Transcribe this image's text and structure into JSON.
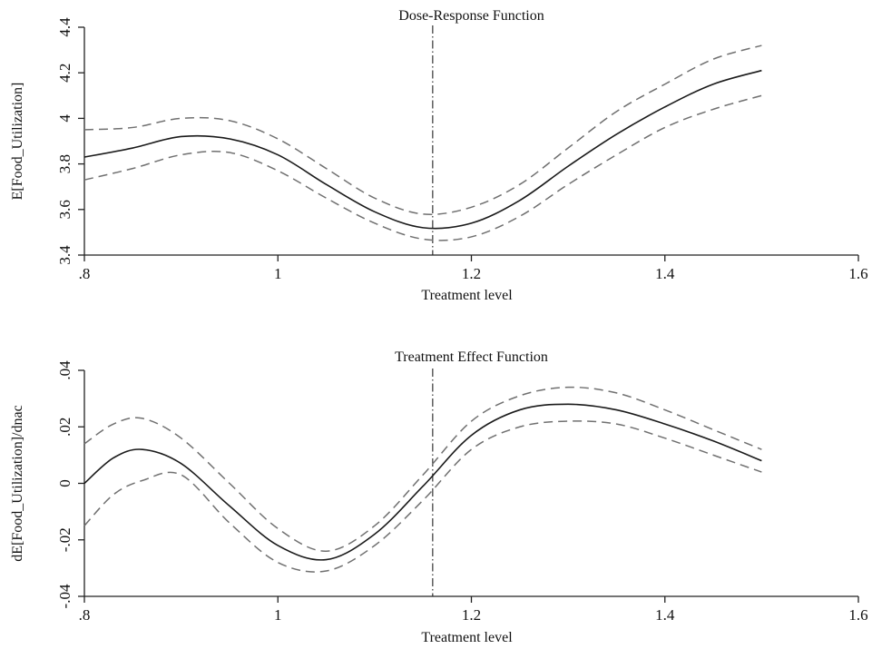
{
  "chart_data": [
    {
      "type": "line",
      "title": "Dose-Response Function",
      "xlabel": "Treatment level",
      "ylabel": "E[Food_Utilization]",
      "xlim": [
        0.8,
        1.6
      ],
      "ylim": [
        3.4,
        4.4
      ],
      "x_ticks": [
        0.8,
        1.0,
        1.2,
        1.4,
        1.6
      ],
      "x_tick_labels": [
        ".8",
        "1",
        "1.2",
        "1.4",
        "1.6"
      ],
      "y_ticks": [
        3.4,
        3.6,
        3.8,
        4.0,
        4.2,
        4.4
      ],
      "y_tick_labels": [
        "3.4",
        "3.6",
        "3.8",
        "4",
        "4.2",
        "4.4"
      ],
      "reference_line_x": 1.16,
      "grid": false,
      "x": [
        0.8,
        0.85,
        0.9,
        0.95,
        1.0,
        1.05,
        1.1,
        1.15,
        1.2,
        1.25,
        1.3,
        1.35,
        1.4,
        1.45,
        1.5
      ],
      "series": [
        {
          "style": "solid",
          "values": [
            3.83,
            3.87,
            3.92,
            3.91,
            3.84,
            3.71,
            3.59,
            3.52,
            3.54,
            3.64,
            3.79,
            3.93,
            4.05,
            4.15,
            4.21
          ]
        },
        {
          "style": "dashed",
          "values": [
            3.95,
            3.96,
            4.0,
            3.99,
            3.91,
            3.78,
            3.65,
            3.58,
            3.61,
            3.71,
            3.87,
            4.03,
            4.15,
            4.26,
            4.32
          ]
        },
        {
          "style": "dashed",
          "values": [
            3.73,
            3.78,
            3.84,
            3.85,
            3.77,
            3.65,
            3.54,
            3.47,
            3.48,
            3.57,
            3.71,
            3.84,
            3.96,
            4.04,
            4.1
          ]
        }
      ]
    },
    {
      "type": "line",
      "title": "Treatment Effect Function",
      "xlabel": "Treatment level",
      "ylabel": "dE[Food_Utilization]/dnac",
      "xlim": [
        0.8,
        1.6
      ],
      "ylim": [
        -0.04,
        0.04
      ],
      "x_ticks": [
        0.8,
        1.0,
        1.2,
        1.4,
        1.6
      ],
      "x_tick_labels": [
        ".8",
        "1",
        "1.2",
        "1.4",
        "1.6"
      ],
      "y_ticks": [
        -0.04,
        -0.02,
        0.0,
        0.02,
        0.04
      ],
      "y_tick_labels": [
        "-.04",
        "-.02",
        "0",
        ".02",
        ".04"
      ],
      "reference_line_x": 1.16,
      "grid": false,
      "x": [
        0.8,
        0.83,
        0.86,
        0.9,
        0.95,
        1.0,
        1.05,
        1.1,
        1.15,
        1.2,
        1.25,
        1.3,
        1.35,
        1.4,
        1.45,
        1.5
      ],
      "series": [
        {
          "style": "solid",
          "values": [
            0.0,
            0.009,
            0.012,
            0.007,
            -0.008,
            -0.022,
            -0.027,
            -0.018,
            -0.001,
            0.017,
            0.026,
            0.028,
            0.026,
            0.021,
            0.015,
            0.008
          ]
        },
        {
          "style": "dashed",
          "values": [
            0.014,
            0.021,
            0.023,
            0.016,
            0.0,
            -0.016,
            -0.024,
            -0.015,
            0.003,
            0.022,
            0.031,
            0.034,
            0.032,
            0.026,
            0.019,
            0.012
          ]
        },
        {
          "style": "dashed",
          "values": [
            -0.015,
            -0.004,
            0.001,
            0.003,
            -0.014,
            -0.028,
            -0.031,
            -0.022,
            -0.006,
            0.012,
            0.02,
            0.022,
            0.021,
            0.016,
            0.01,
            0.004
          ]
        }
      ]
    }
  ]
}
